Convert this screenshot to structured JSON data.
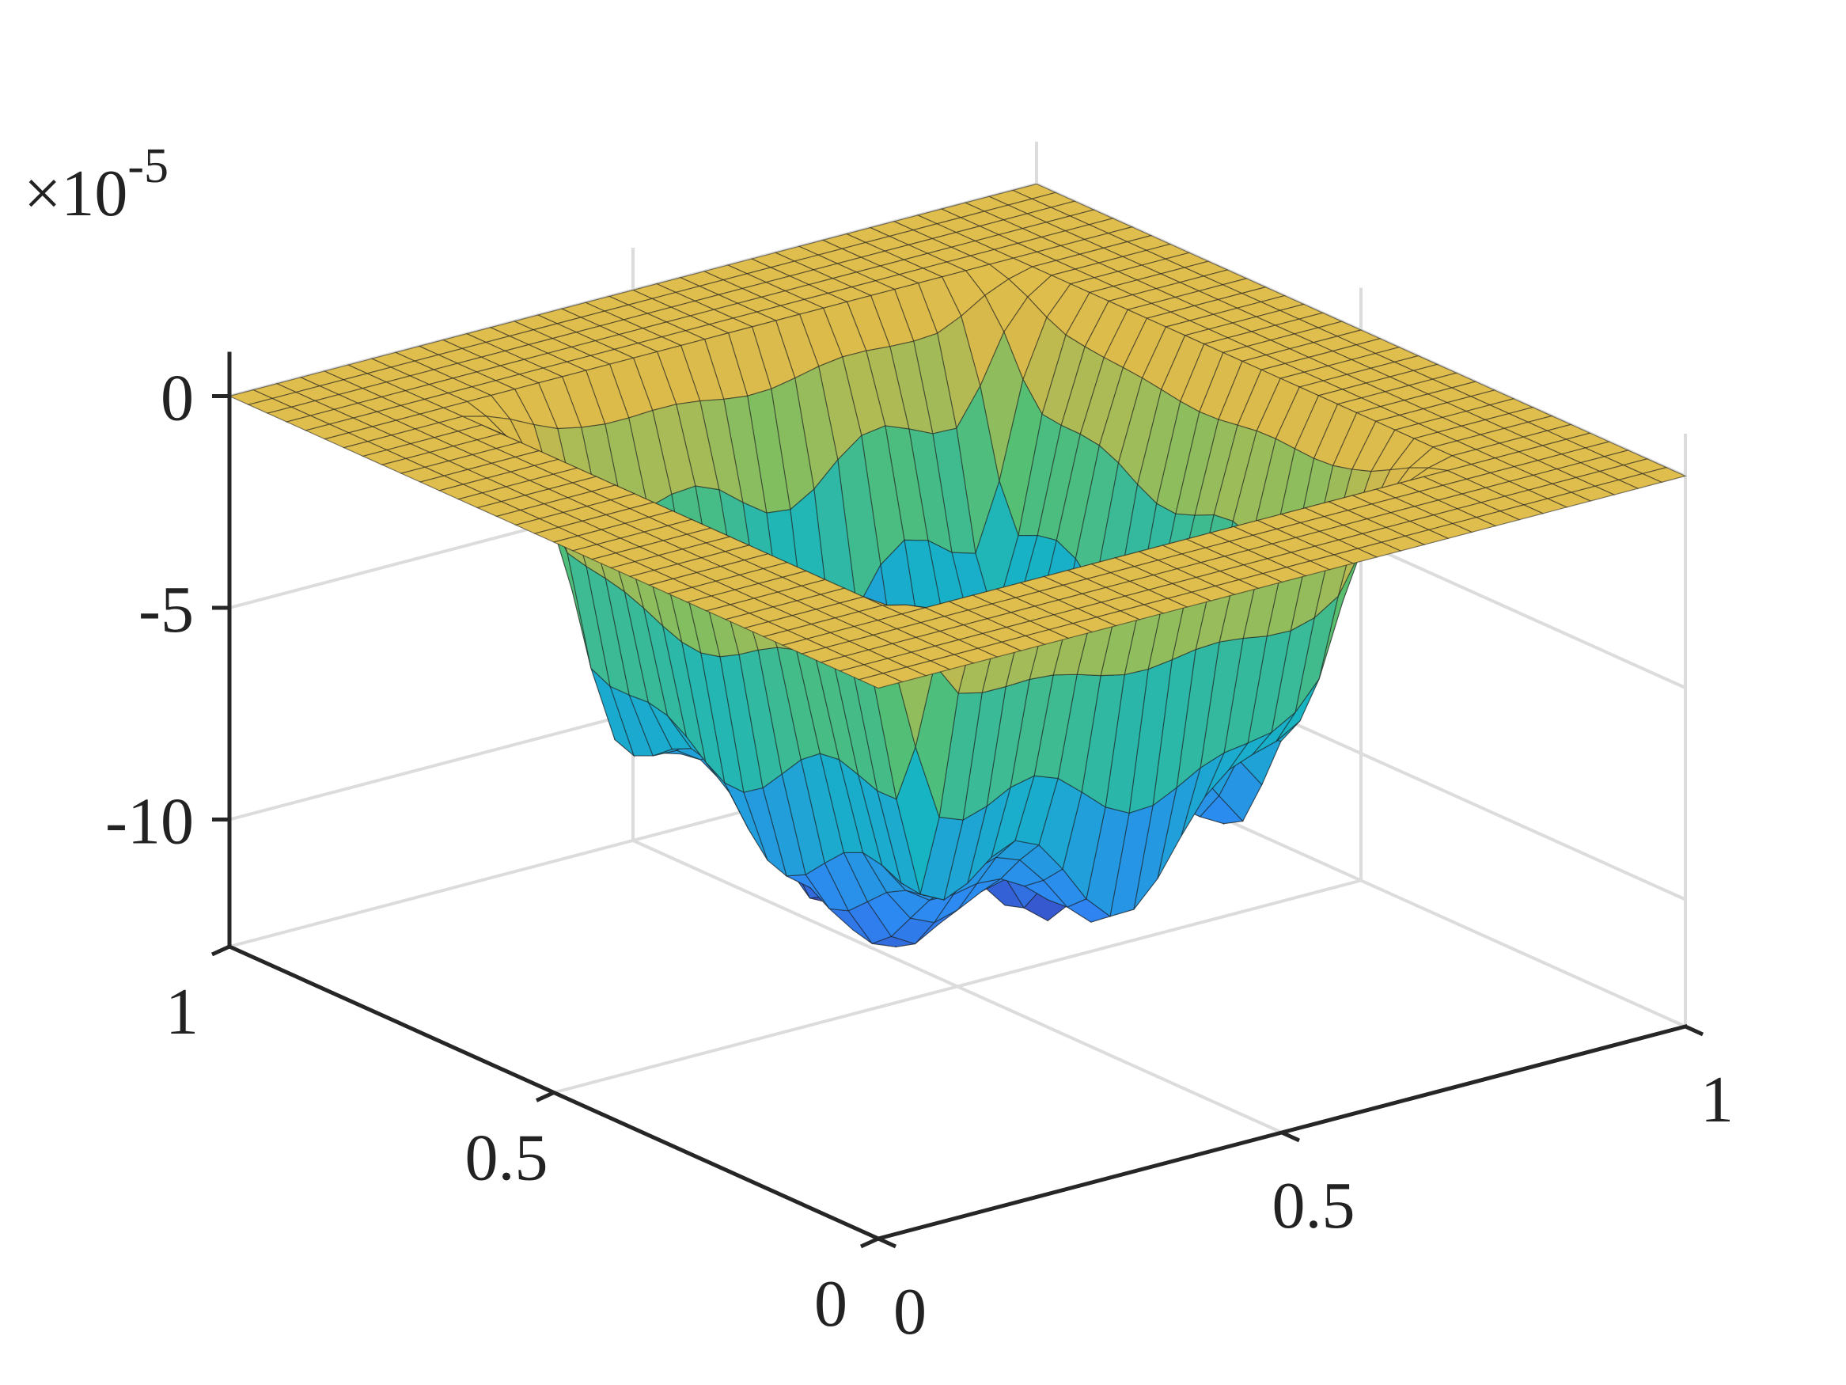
{
  "chart_data": {
    "type": "surface",
    "title": "",
    "xlabel": "",
    "ylabel": "",
    "zlabel": "",
    "xlim": [
      0,
      1
    ],
    "ylim": [
      0,
      1
    ],
    "zlim": [
      -13,
      1
    ],
    "x_ticks": [
      "0",
      "0.5",
      "1"
    ],
    "y_ticks": [
      "0",
      "0.5",
      "1"
    ],
    "z_ticks": [
      "0",
      "-5",
      "-10"
    ],
    "z_multiplier": "×10",
    "z_multiplier_exponent": "-5",
    "grid": true,
    "colormap": "parula",
    "surface_summary": {
      "boundary_value": 0,
      "center_value": -5.6,
      "inner_region_min": -12.8,
      "inner_region_bounds": [
        0.2,
        0.8
      ]
    }
  }
}
